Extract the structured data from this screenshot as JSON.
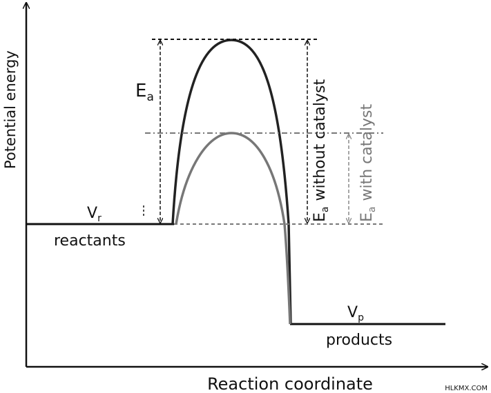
{
  "axes": {
    "y_label": "Potential energy",
    "x_label": "Reaction coordinate"
  },
  "labels": {
    "ea": {
      "symbol": "E",
      "subscript": "a"
    },
    "vr": {
      "symbol": "V",
      "subscript": "r"
    },
    "reactants": "reactants",
    "vp": {
      "symbol": "V",
      "subscript": "p"
    },
    "products": "products",
    "ea_without": {
      "symbol": "E",
      "subscript": "a",
      "text": "without catalyst"
    },
    "ea_with": {
      "symbol": "E",
      "subscript": "a",
      "text": "with catalyst"
    }
  },
  "watermark": "HLKMX.COM"
}
